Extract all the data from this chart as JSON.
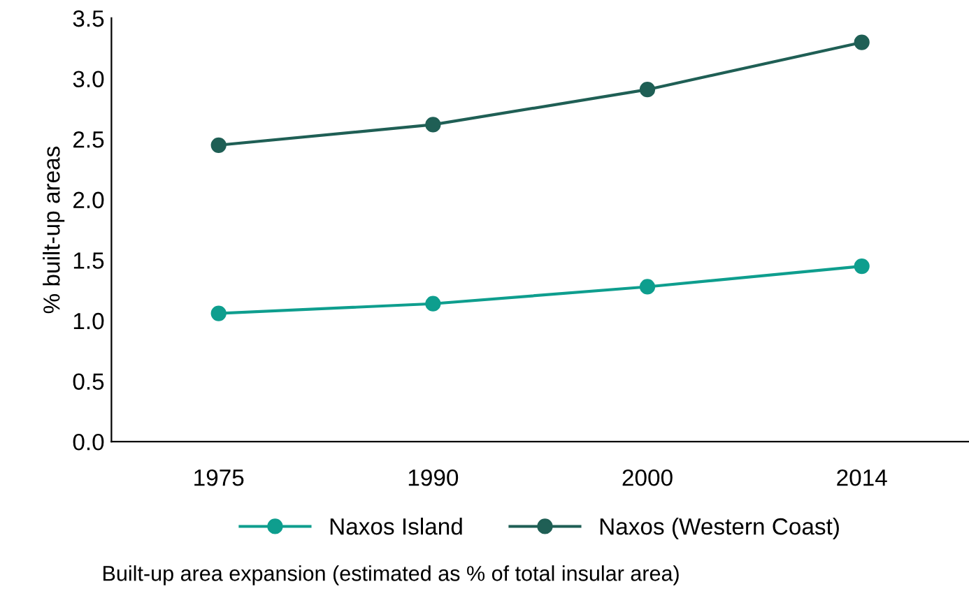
{
  "chart_data": {
    "type": "line",
    "ylabel": "% built-up areas",
    "categories": [
      "1975",
      "1990",
      "2000",
      "2014"
    ],
    "series": [
      {
        "name": "Naxos Island",
        "color": "#0e9e8e",
        "values": [
          1.06,
          1.14,
          1.28,
          1.45
        ]
      },
      {
        "name": "Naxos (Western Coast)",
        "color": "#1f5f55",
        "values": [
          2.45,
          2.62,
          2.91,
          3.3
        ]
      }
    ],
    "ylim": [
      0,
      3.5
    ],
    "yticks": [
      {
        "value": 0,
        "label": "0.0"
      },
      0.5,
      {
        "value": 1,
        "label": "1.0"
      },
      1.5,
      {
        "value": 2,
        "label": "2.0"
      },
      2.5,
      {
        "value": 3,
        "label": "3.0"
      },
      3.5
    ],
    "marker": "circle",
    "line_style": "solid",
    "grid": false,
    "legend": "bottom",
    "annotations": [
      "Built-up area expansion (estimated as % of total insular area)"
    ]
  }
}
